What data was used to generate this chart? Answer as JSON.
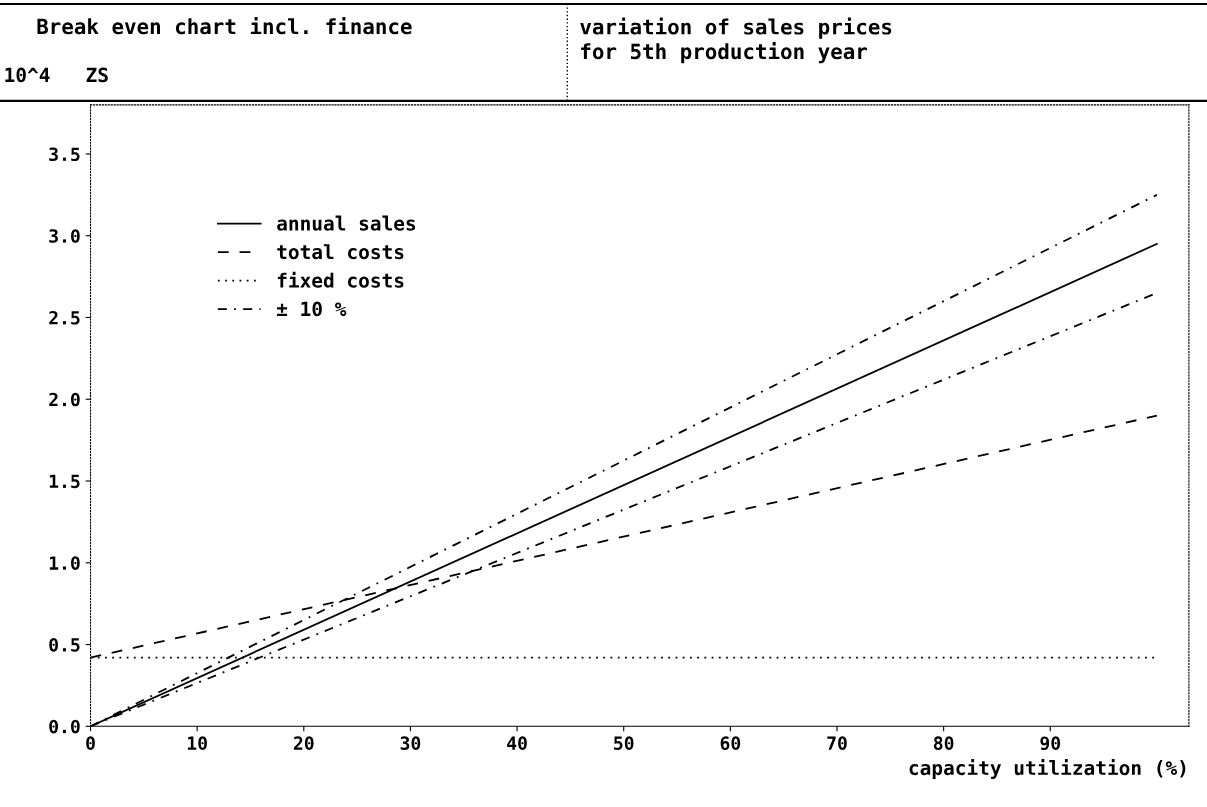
{
  "chart_data": {
    "type": "line",
    "title": "Break even chart incl. finance",
    "subtitle": "variation of sales prices\nfor 5th production year",
    "ylabel": "10^4   ZS",
    "xlabel": "capacity utilization (%)",
    "x": [
      0,
      100
    ],
    "series": [
      {
        "name": "annual sales",
        "color": "#000000",
        "line_style": "solid",
        "values": [
          0,
          2.95
        ]
      },
      {
        "name": "total costs",
        "color": "#000000",
        "line_style": "dashed",
        "values": [
          0.42,
          1.9
        ]
      },
      {
        "name": "fixed costs",
        "color": "#000000",
        "line_style": "dotted",
        "values": [
          0.42,
          0.42
        ]
      },
      {
        "name": "± 10 %",
        "color": "#000000",
        "line_style": "dashdot",
        "values": [
          0,
          3.25
        ]
      },
      {
        "color": "#000000",
        "line_style": "dashdot",
        "values": [
          0,
          2.65
        ]
      }
    ],
    "xlim": [
      0,
      103
    ],
    "xticks": [
      0,
      10,
      20,
      30,
      40,
      50,
      60,
      70,
      80,
      90
    ],
    "ylim": [
      0,
      3.8
    ],
    "yticks": [
      {
        "value": 0,
        "label": "0.0"
      },
      {
        "value": 0.5,
        "label": "0.5"
      },
      {
        "value": 1,
        "label": "1.0"
      },
      {
        "value": 1.5,
        "label": "1.5"
      },
      {
        "value": 2,
        "label": "2.0"
      },
      {
        "value": 2.5,
        "label": "2.5"
      },
      {
        "value": 3,
        "label": "3.0"
      },
      {
        "value": 3.5,
        "label": "3.5"
      }
    ],
    "grid": false,
    "legend": "top left",
    "marker": "none"
  }
}
